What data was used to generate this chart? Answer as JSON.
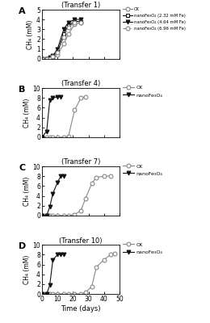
{
  "panel_A": {
    "title": "(Transfer 1)",
    "ylim": [
      0,
      5
    ],
    "yticks": [
      0,
      1,
      2,
      3,
      4,
      5
    ],
    "CK": {
      "x": [
        0,
        3,
        5,
        7,
        10,
        14,
        17,
        21,
        25
      ],
      "y": [
        0,
        0,
        0,
        0.1,
        0.4,
        1.5,
        2.5,
        3.5,
        3.7
      ]
    },
    "nano1": {
      "x": [
        0,
        3,
        5,
        7,
        10,
        14,
        17,
        21,
        25
      ],
      "y": [
        0,
        0,
        0,
        0.2,
        0.7,
        2.5,
        3.4,
        3.8,
        3.8
      ]
    },
    "nano2": {
      "x": [
        0,
        3,
        5,
        7,
        10,
        14,
        17,
        21,
        25
      ],
      "y": [
        0,
        0,
        0.1,
        0.3,
        1.0,
        3.0,
        3.7,
        4.0,
        4.0
      ]
    },
    "nano3": {
      "x": [
        0,
        3,
        5,
        7,
        10,
        14,
        17,
        21,
        25
      ],
      "y": [
        0,
        0,
        0,
        0.2,
        0.6,
        2.2,
        3.2,
        3.7,
        3.7
      ]
    }
  },
  "panel_B": {
    "title": "(Transfer 4)",
    "ylim": [
      0,
      10
    ],
    "yticks": [
      0,
      2,
      4,
      6,
      8,
      10
    ],
    "CK": {
      "x": [
        0,
        3,
        5,
        7,
        10,
        14,
        17,
        21,
        25,
        28
      ],
      "y": [
        0,
        0,
        0,
        0,
        0,
        0,
        0.2,
        5.5,
        8.0,
        8.2
      ]
    },
    "nano": {
      "x": [
        0,
        3,
        5,
        7,
        10,
        12
      ],
      "y": [
        0,
        1.2,
        7.5,
        8.0,
        8.2,
        8.2
      ]
    }
  },
  "panel_C": {
    "title": "(Transfer 7)",
    "ylim": [
      0,
      10
    ],
    "yticks": [
      0,
      2,
      4,
      6,
      8,
      10
    ],
    "CK": {
      "x": [
        0,
        3,
        5,
        7,
        10,
        14,
        17,
        21,
        25,
        28,
        32,
        35,
        40,
        44
      ],
      "y": [
        0,
        0,
        0,
        0,
        0,
        0,
        0,
        0.2,
        1.0,
        3.5,
        6.5,
        7.8,
        8.0,
        8.1
      ]
    },
    "nano": {
      "x": [
        0,
        3,
        5,
        7,
        10,
        12,
        14
      ],
      "y": [
        0,
        0,
        1.8,
        4.5,
        6.8,
        8.0,
        8.1
      ]
    }
  },
  "panel_D": {
    "title": "(Transfer 10)",
    "ylim": [
      0,
      10
    ],
    "yticks": [
      0,
      2,
      4,
      6,
      8,
      10
    ],
    "CK": {
      "x": [
        0,
        3,
        5,
        7,
        10,
        14,
        17,
        21,
        25,
        28,
        32,
        35,
        40,
        44,
        47
      ],
      "y": [
        0,
        0,
        0,
        0,
        0,
        0,
        0,
        0,
        0,
        0.3,
        1.5,
        5.5,
        7.0,
        8.0,
        8.2
      ]
    },
    "nano": {
      "x": [
        0,
        3,
        5,
        7,
        10,
        12,
        14
      ],
      "y": [
        0,
        0,
        1.8,
        7.0,
        8.0,
        8.1,
        8.1
      ]
    }
  },
  "xlim": [
    0,
    50
  ],
  "xticks": [
    0,
    10,
    20,
    30,
    40,
    50
  ],
  "xlabel": "Time (days)",
  "ylabel": "CH₄ (mM)",
  "color_CK": "#888888",
  "color_nano": "#111111",
  "legend_A": [
    "CK",
    "nanoFe₃O₄ (2.32 mM Fe)",
    "nanoFe₃O₄ (4.64 mM Fe)",
    "nanoFe₃O₄ (6.96 mM Fe)"
  ],
  "legend_BCD": [
    "CK",
    "nanoFe₃O₄"
  ]
}
